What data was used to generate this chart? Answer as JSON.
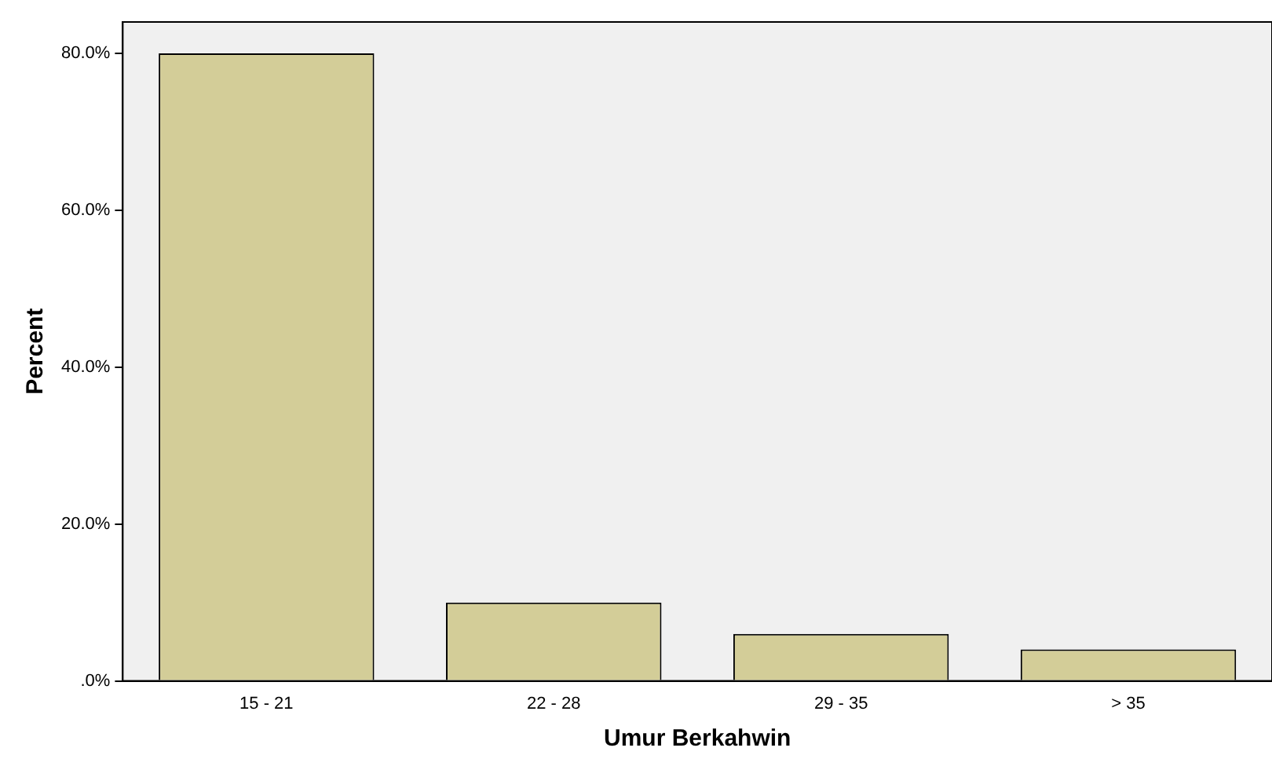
{
  "chart_data": {
    "type": "bar",
    "xlabel": "Umur Berkahwin",
    "ylabel": "Percent",
    "categories": [
      "15 - 21",
      "22 - 28",
      "29 - 35",
      "> 35"
    ],
    "values": [
      80,
      10,
      6,
      4
    ],
    "color": "#d3cd98",
    "ylim": [
      0,
      84
    ],
    "yticks": [
      {
        "value": 0,
        "label": ".0%"
      },
      {
        "value": 20,
        "label": "20.0%"
      },
      {
        "value": 40,
        "label": "40.0%"
      },
      {
        "value": 60,
        "label": "60.0%"
      },
      {
        "value": 80,
        "label": "80.0%"
      }
    ],
    "grid": false,
    "legend": false
  }
}
